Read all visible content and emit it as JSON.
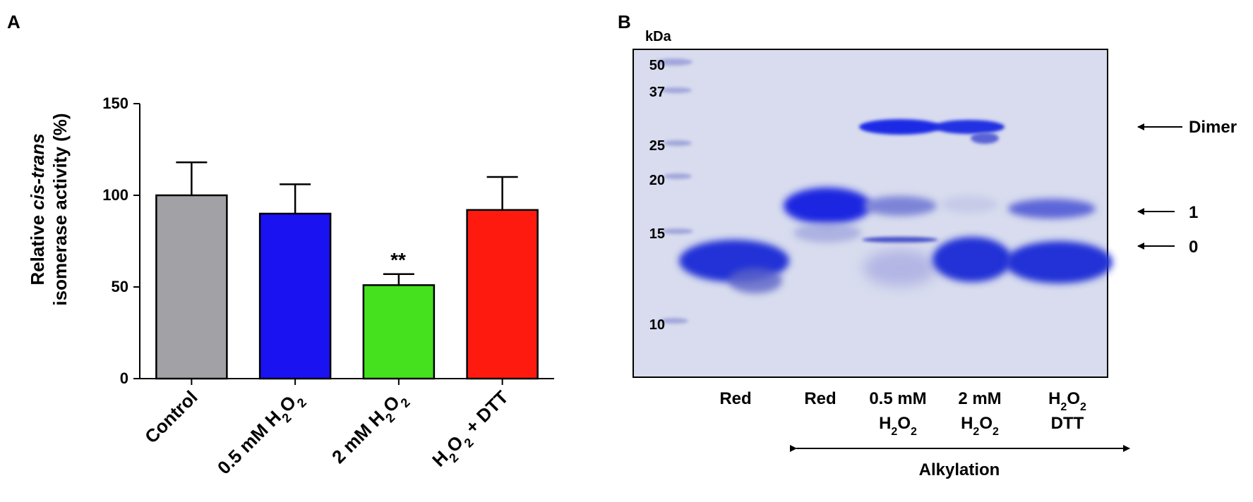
{
  "panel_a": {
    "label": "A",
    "significance": "**",
    "chart_data": {
      "type": "bar",
      "categories": [
        "Control",
        "0.5 mM H2O2",
        "2 mM H2O2",
        "H2O2 + DTT"
      ],
      "category_parts": [
        [
          {
            "t": "Control",
            "sub": false
          }
        ],
        [
          {
            "t": "0.5 mM H",
            "sub": false
          },
          {
            "t": "2",
            "sub": true
          },
          {
            "t": "O",
            "sub": false
          },
          {
            "t": "2",
            "sub": true
          }
        ],
        [
          {
            "t": "2 mM H",
            "sub": false
          },
          {
            "t": "2",
            "sub": true
          },
          {
            "t": "O",
            "sub": false
          },
          {
            "t": "2",
            "sub": true
          }
        ],
        [
          {
            "t": "H",
            "sub": false
          },
          {
            "t": "2",
            "sub": true
          },
          {
            "t": "O",
            "sub": false
          },
          {
            "t": "2",
            "sub": true
          },
          {
            "t": " + DTT",
            "sub": false
          }
        ]
      ],
      "values": [
        100,
        90,
        51,
        92
      ],
      "errors": [
        18,
        16,
        6,
        18
      ],
      "colors": [
        "#a2a1a6",
        "#1a12f0",
        "#45e11e",
        "#ff1a0f"
      ],
      "ylabel_line1_parts": [
        {
          "t": "Relative ",
          "italic": false
        },
        {
          "t": "cis-trans",
          "italic": true
        }
      ],
      "ylabel_line2": "isomerase activity (%)",
      "ylim": [
        0,
        150
      ],
      "yticks": [
        0,
        50,
        100,
        150
      ],
      "grid": false
    }
  },
  "panel_b": {
    "label": "B",
    "kda_label": "kDa",
    "markers": [
      "50",
      "37",
      "25",
      "20",
      "15",
      "10"
    ],
    "lanes": [
      {
        "line1": "Red",
        "line2": ""
      },
      {
        "line1": "Red",
        "line2": ""
      },
      {
        "line1": "0.5 mM",
        "line2": "H2O2"
      },
      {
        "line1": "2 mM",
        "line2": "H2O2"
      },
      {
        "line1": "H2O2",
        "line2": "DTT"
      }
    ],
    "band_labels": [
      "Dimer",
      "1",
      "0"
    ],
    "alkylation_label": "Alkylation"
  }
}
